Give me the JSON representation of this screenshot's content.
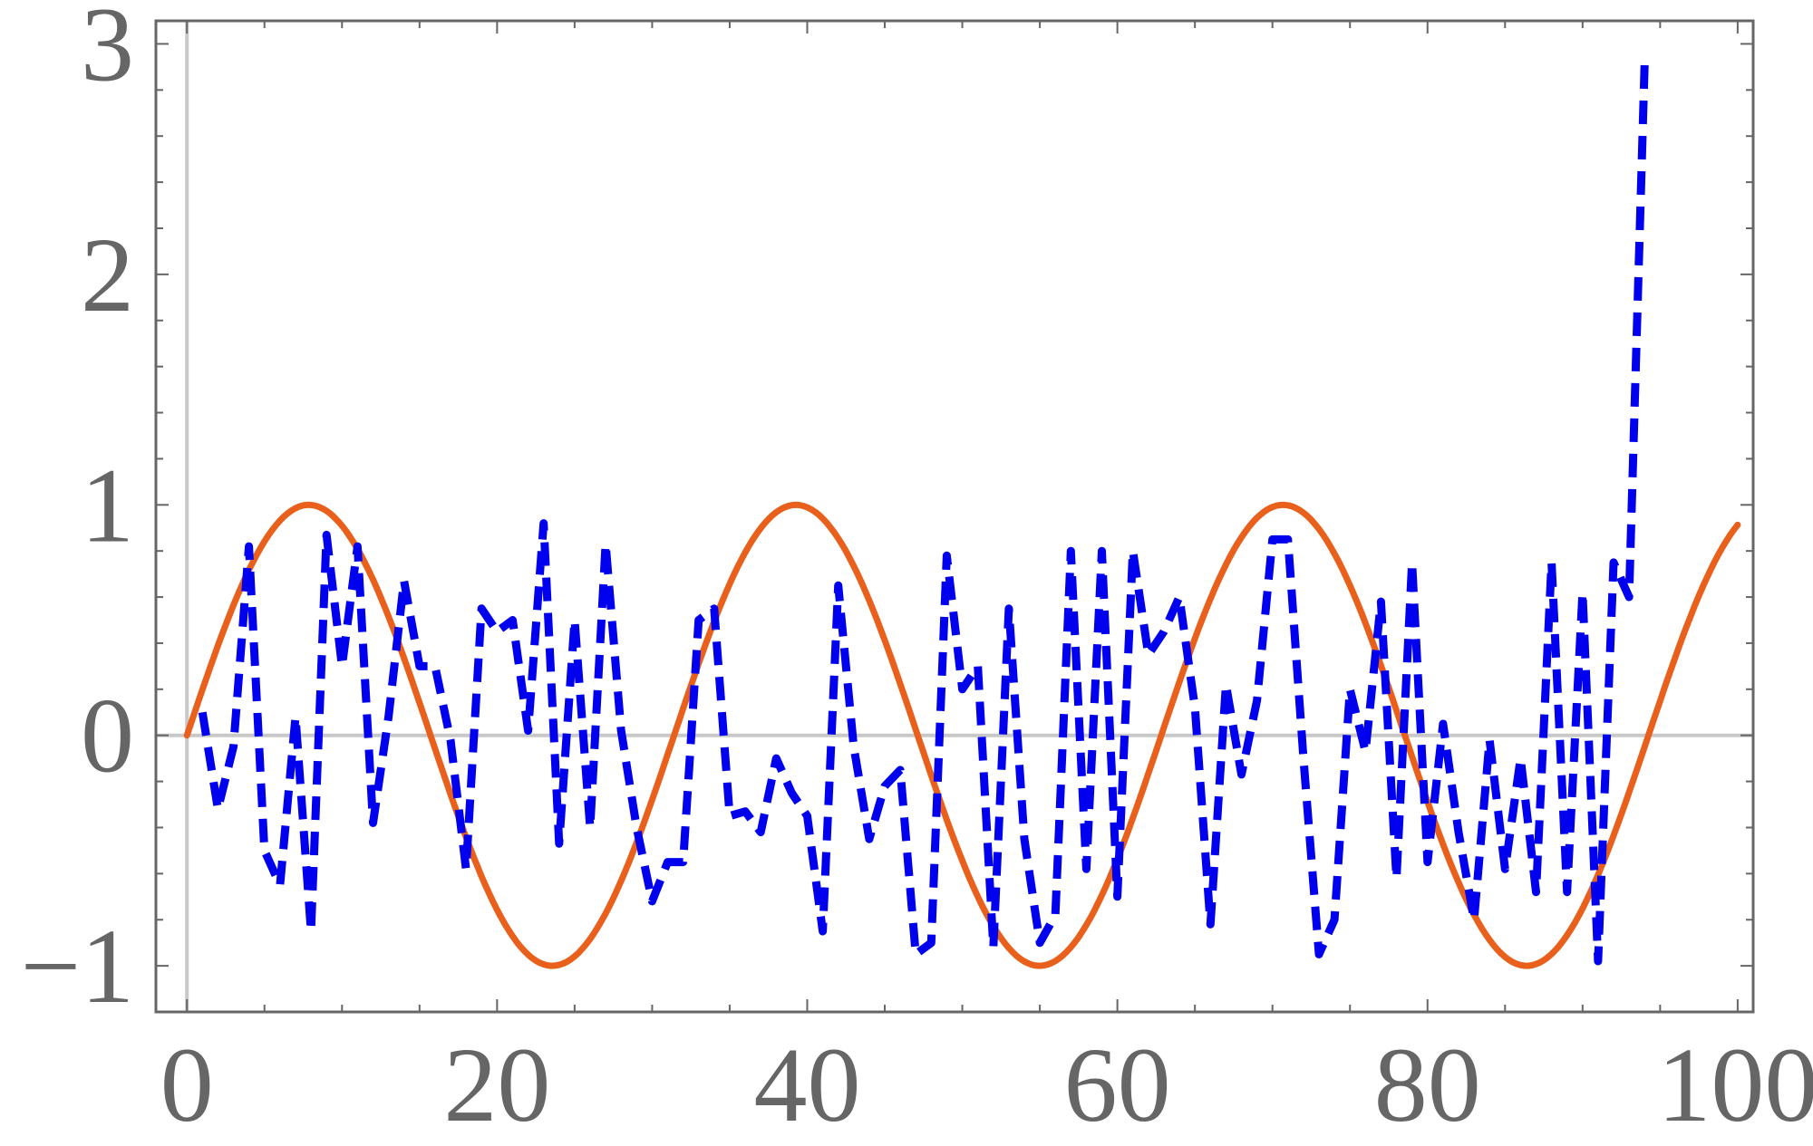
{
  "chart_data": {
    "type": "line",
    "title": "",
    "xlabel": "",
    "ylabel": "",
    "xlim": [
      -2,
      101
    ],
    "ylim": [
      -1.2,
      3.1
    ],
    "grid": false,
    "legend": "none",
    "x_ticks": [
      {
        "value": 0,
        "label": "0"
      },
      {
        "value": 20,
        "label": "20"
      },
      {
        "value": 40,
        "label": "40"
      },
      {
        "value": 60,
        "label": "60"
      },
      {
        "value": 80,
        "label": "80"
      },
      {
        "value": 100,
        "label": "100"
      }
    ],
    "y_ticks": [
      {
        "value": -1,
        "label": "−1"
      },
      {
        "value": 0,
        "label": "0"
      },
      {
        "value": 1,
        "label": "1"
      },
      {
        "value": 2,
        "label": "2"
      },
      {
        "value": 3,
        "label": "3"
      }
    ],
    "colors": {
      "frame": "#666666",
      "axis": "#c8c8c8",
      "tick_text": "#666666",
      "sine": "#e8601c",
      "noisy": "#0000ee"
    },
    "series": [
      {
        "style": "solid",
        "color": "#e8601c",
        "function": "sin(x/5)",
        "x_range": [
          0,
          100
        ]
      },
      {
        "style": "dashed",
        "color": "#0000ee",
        "x": [
          1,
          2,
          3,
          4,
          5,
          6,
          7,
          8,
          9,
          10,
          11,
          12,
          13,
          14,
          15,
          16,
          17,
          18,
          19,
          20,
          21,
          22,
          23,
          24,
          25,
          26,
          27,
          28,
          29,
          30,
          31,
          32,
          33,
          34,
          35,
          36,
          37,
          38,
          39,
          40,
          41,
          42,
          43,
          44,
          45,
          46,
          47,
          48,
          49,
          50,
          51,
          52,
          53,
          54,
          55,
          56,
          57,
          58,
          59,
          60,
          61,
          62,
          63,
          64,
          65,
          66,
          67,
          68,
          69,
          70,
          71,
          72,
          73,
          74,
          75,
          76,
          77,
          78,
          79,
          80,
          81,
          82,
          83,
          84,
          85,
          86,
          87,
          88,
          89,
          90,
          91,
          92,
          93,
          94
        ],
        "values": [
          0.1,
          -0.32,
          -0.05,
          0.82,
          -0.5,
          -0.65,
          0.08,
          -0.85,
          0.87,
          0.3,
          0.82,
          -0.38,
          0.08,
          0.67,
          0.3,
          0.3,
          -0.02,
          -0.58,
          0.55,
          0.45,
          0.5,
          0.02,
          0.92,
          -0.47,
          0.5,
          -0.4,
          0.83,
          0.02,
          -0.4,
          -0.72,
          -0.55,
          -0.55,
          0.5,
          0.55,
          -0.35,
          -0.33,
          -0.42,
          -0.1,
          -0.25,
          -0.35,
          -0.85,
          0.65,
          -0.05,
          -0.45,
          -0.22,
          -0.15,
          -0.95,
          -0.9,
          0.78,
          0.2,
          0.3,
          -0.92,
          0.55,
          -0.45,
          -0.9,
          -0.78,
          0.8,
          -0.58,
          0.8,
          -0.7,
          0.8,
          0.35,
          0.45,
          0.6,
          0.12,
          -0.82,
          0.22,
          -0.17,
          0.15,
          0.85,
          0.85,
          -0.1,
          -0.95,
          -0.8,
          0.2,
          -0.07,
          0.58,
          -0.62,
          0.75,
          -0.55,
          0.05,
          -0.42,
          -0.8,
          -0.02,
          -0.58,
          -0.1,
          -0.68,
          0.75,
          -0.68,
          0.62,
          -0.98,
          0.75,
          0.6,
          2.92
        ]
      }
    ]
  }
}
